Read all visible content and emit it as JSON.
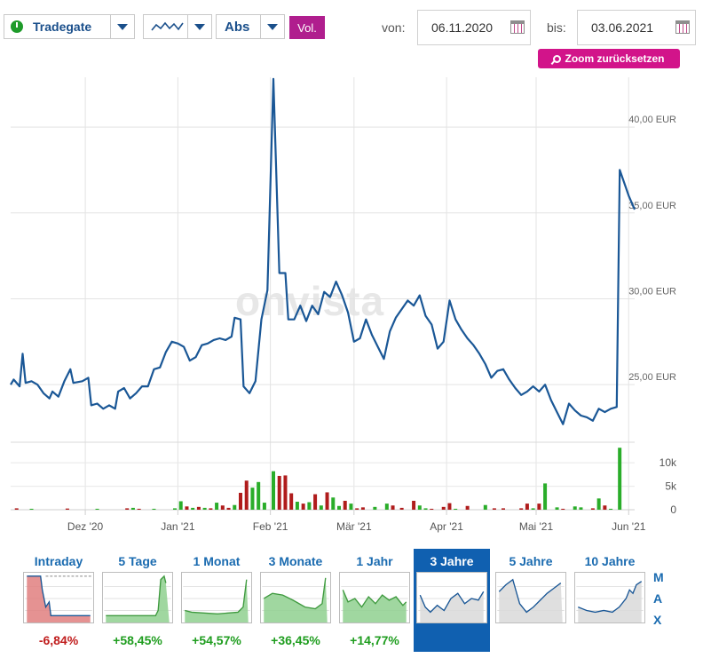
{
  "toolbar": {
    "exchange": "Tradegate",
    "scale": "Abs",
    "volume_button": "Vol.",
    "from_label": "von:",
    "from_date": "06.11.2020",
    "to_label": "bis:",
    "to_date": "03.06.2021",
    "zoom_reset": "Zoom zurücksetzen"
  },
  "watermark": "onvista",
  "colors": {
    "line": "#1a5796",
    "volume_up": "#2aad2a",
    "volume_down": "#b01c1c",
    "brand": "#d2148a",
    "active_tab": "#1060b0"
  },
  "chart_data": {
    "type": "line",
    "price_axis": {
      "ticks": [
        25,
        30,
        35,
        40
      ],
      "tick_labels": [
        "25,00 EUR",
        "30,00 EUR",
        "35,00 EUR",
        "40,00 EUR"
      ],
      "ylim": [
        21.7,
        42.9
      ]
    },
    "volume_axis": {
      "ticks": [
        0,
        5000,
        10000
      ],
      "tick_labels": [
        "0",
        "5k",
        "10k"
      ],
      "ylim": [
        0,
        14000
      ]
    },
    "x_axis": {
      "labels": [
        "Dez '20",
        "Jan '21",
        "Feb '21",
        "Mär '21",
        "Apr '21",
        "Mai '21",
        "Jun '21"
      ],
      "label_dates": [
        "2020-12-01",
        "2021-01-01",
        "2021-02-01",
        "2021-03-01",
        "2021-04-01",
        "2021-05-01",
        "2021-06-01"
      ],
      "range": [
        "2020-11-06",
        "2021-06-03"
      ]
    },
    "grid": true,
    "price_series": [
      [
        "2020-11-06",
        25.0
      ],
      [
        "2020-11-07",
        25.3
      ],
      [
        "2020-11-09",
        24.9
      ],
      [
        "2020-11-10",
        26.8
      ],
      [
        "2020-11-11",
        25.1
      ],
      [
        "2020-11-13",
        25.2
      ],
      [
        "2020-11-15",
        25.0
      ],
      [
        "2020-11-17",
        24.5
      ],
      [
        "2020-11-19",
        24.2
      ],
      [
        "2020-11-20",
        24.6
      ],
      [
        "2020-11-22",
        24.3
      ],
      [
        "2020-11-24",
        25.2
      ],
      [
        "2020-11-26",
        25.9
      ],
      [
        "2020-11-27",
        25.1
      ],
      [
        "2020-11-30",
        25.2
      ],
      [
        "2020-12-02",
        25.4
      ],
      [
        "2020-12-03",
        23.8
      ],
      [
        "2020-12-05",
        23.9
      ],
      [
        "2020-12-07",
        23.6
      ],
      [
        "2020-12-09",
        23.8
      ],
      [
        "2020-12-11",
        23.6
      ],
      [
        "2020-12-12",
        24.6
      ],
      [
        "2020-12-14",
        24.8
      ],
      [
        "2020-12-16",
        24.2
      ],
      [
        "2020-12-18",
        24.5
      ],
      [
        "2020-12-20",
        24.9
      ],
      [
        "2020-12-22",
        24.9
      ],
      [
        "2020-12-24",
        25.9
      ],
      [
        "2020-12-26",
        26.0
      ],
      [
        "2020-12-28",
        26.9
      ],
      [
        "2020-12-30",
        27.5
      ],
      [
        "2021-01-01",
        27.4
      ],
      [
        "2021-01-03",
        27.2
      ],
      [
        "2021-01-05",
        26.4
      ],
      [
        "2021-01-07",
        26.6
      ],
      [
        "2021-01-09",
        27.3
      ],
      [
        "2021-01-11",
        27.4
      ],
      [
        "2021-01-13",
        27.6
      ],
      [
        "2021-01-15",
        27.7
      ],
      [
        "2021-01-17",
        27.6
      ],
      [
        "2021-01-19",
        27.8
      ],
      [
        "2021-01-20",
        28.9
      ],
      [
        "2021-01-22",
        28.8
      ],
      [
        "2021-01-23",
        24.9
      ],
      [
        "2021-01-25",
        24.5
      ],
      [
        "2021-01-27",
        25.2
      ],
      [
        "2021-01-29",
        28.8
      ],
      [
        "2021-01-31",
        30.5
      ],
      [
        "2021-02-02",
        42.8
      ],
      [
        "2021-02-04",
        31.5
      ],
      [
        "2021-02-06",
        31.5
      ],
      [
        "2021-02-07",
        28.8
      ],
      [
        "2021-02-09",
        28.8
      ],
      [
        "2021-02-11",
        29.6
      ],
      [
        "2021-02-13",
        28.7
      ],
      [
        "2021-02-15",
        29.6
      ],
      [
        "2021-02-17",
        29.1
      ],
      [
        "2021-02-19",
        30.4
      ],
      [
        "2021-02-21",
        30.1
      ],
      [
        "2021-02-23",
        31.0
      ],
      [
        "2021-02-25",
        30.2
      ],
      [
        "2021-02-27",
        29.2
      ],
      [
        "2021-03-01",
        27.5
      ],
      [
        "2021-03-03",
        27.7
      ],
      [
        "2021-03-05",
        28.8
      ],
      [
        "2021-03-07",
        27.9
      ],
      [
        "2021-03-09",
        27.2
      ],
      [
        "2021-03-11",
        26.5
      ],
      [
        "2021-03-13",
        28.1
      ],
      [
        "2021-03-15",
        28.9
      ],
      [
        "2021-03-17",
        29.4
      ],
      [
        "2021-03-19",
        29.9
      ],
      [
        "2021-03-21",
        29.6
      ],
      [
        "2021-03-23",
        30.2
      ],
      [
        "2021-03-25",
        29.0
      ],
      [
        "2021-03-27",
        28.5
      ],
      [
        "2021-03-29",
        27.1
      ],
      [
        "2021-03-31",
        27.5
      ],
      [
        "2021-04-02",
        29.9
      ],
      [
        "2021-04-04",
        28.8
      ],
      [
        "2021-04-06",
        28.2
      ],
      [
        "2021-04-08",
        27.7
      ],
      [
        "2021-04-10",
        27.3
      ],
      [
        "2021-04-12",
        26.8
      ],
      [
        "2021-04-14",
        26.2
      ],
      [
        "2021-04-16",
        25.4
      ],
      [
        "2021-04-18",
        25.8
      ],
      [
        "2021-04-20",
        25.9
      ],
      [
        "2021-04-22",
        25.3
      ],
      [
        "2021-04-24",
        24.8
      ],
      [
        "2021-04-26",
        24.4
      ],
      [
        "2021-04-28",
        24.6
      ],
      [
        "2021-04-30",
        24.9
      ],
      [
        "2021-05-02",
        24.6
      ],
      [
        "2021-05-04",
        25.0
      ],
      [
        "2021-05-06",
        24.1
      ],
      [
        "2021-05-08",
        23.4
      ],
      [
        "2021-05-10",
        22.7
      ],
      [
        "2021-05-12",
        23.9
      ],
      [
        "2021-05-14",
        23.5
      ],
      [
        "2021-05-16",
        23.2
      ],
      [
        "2021-05-18",
        23.1
      ],
      [
        "2021-05-20",
        22.9
      ],
      [
        "2021-05-22",
        23.6
      ],
      [
        "2021-05-24",
        23.4
      ],
      [
        "2021-05-26",
        23.6
      ],
      [
        "2021-05-28",
        23.7
      ],
      [
        "2021-05-29",
        37.5
      ],
      [
        "2021-06-01",
        36.0
      ],
      [
        "2021-06-03",
        35.2
      ]
    ],
    "volume_series": [
      [
        "2020-11-08",
        300,
        "down"
      ],
      [
        "2020-11-13",
        200,
        "up"
      ],
      [
        "2020-11-25",
        250,
        "down"
      ],
      [
        "2020-12-05",
        200,
        "up"
      ],
      [
        "2020-12-15",
        300,
        "down"
      ],
      [
        "2020-12-17",
        400,
        "up"
      ],
      [
        "2020-12-19",
        200,
        "down"
      ],
      [
        "2020-12-24",
        200,
        "up"
      ],
      [
        "2020-12-31",
        300,
        "up"
      ],
      [
        "2021-01-02",
        1800,
        "up"
      ],
      [
        "2021-01-04",
        700,
        "down"
      ],
      [
        "2021-01-06",
        400,
        "up"
      ],
      [
        "2021-01-08",
        600,
        "down"
      ],
      [
        "2021-01-10",
        400,
        "up"
      ],
      [
        "2021-01-12",
        300,
        "down"
      ],
      [
        "2021-01-14",
        1500,
        "up"
      ],
      [
        "2021-01-16",
        900,
        "down"
      ],
      [
        "2021-01-18",
        400,
        "down"
      ],
      [
        "2021-01-20",
        1000,
        "up"
      ],
      [
        "2021-01-22",
        3600,
        "down"
      ],
      [
        "2021-01-24",
        6200,
        "down"
      ],
      [
        "2021-01-26",
        4700,
        "up"
      ],
      [
        "2021-01-28",
        5900,
        "up"
      ],
      [
        "2021-01-30",
        1500,
        "up"
      ],
      [
        "2021-02-02",
        8200,
        "up"
      ],
      [
        "2021-02-04",
        7200,
        "down"
      ],
      [
        "2021-02-06",
        7300,
        "down"
      ],
      [
        "2021-02-08",
        3500,
        "down"
      ],
      [
        "2021-02-10",
        1700,
        "up"
      ],
      [
        "2021-02-12",
        1300,
        "down"
      ],
      [
        "2021-02-14",
        1600,
        "up"
      ],
      [
        "2021-02-16",
        3300,
        "down"
      ],
      [
        "2021-02-18",
        900,
        "up"
      ],
      [
        "2021-02-20",
        3700,
        "down"
      ],
      [
        "2021-02-22",
        2600,
        "up"
      ],
      [
        "2021-02-24",
        800,
        "up"
      ],
      [
        "2021-02-26",
        1900,
        "down"
      ],
      [
        "2021-02-28",
        1300,
        "up"
      ],
      [
        "2021-03-02",
        300,
        "down"
      ],
      [
        "2021-03-04",
        500,
        "down"
      ],
      [
        "2021-03-08",
        600,
        "up"
      ],
      [
        "2021-03-12",
        1300,
        "up"
      ],
      [
        "2021-03-14",
        900,
        "down"
      ],
      [
        "2021-03-17",
        400,
        "down"
      ],
      [
        "2021-03-21",
        1900,
        "down"
      ],
      [
        "2021-03-23",
        900,
        "up"
      ],
      [
        "2021-03-25",
        300,
        "up"
      ],
      [
        "2021-03-27",
        200,
        "down"
      ],
      [
        "2021-03-31",
        600,
        "down"
      ],
      [
        "2021-04-02",
        1400,
        "down"
      ],
      [
        "2021-04-04",
        200,
        "up"
      ],
      [
        "2021-04-08",
        800,
        "down"
      ],
      [
        "2021-04-14",
        1000,
        "up"
      ],
      [
        "2021-04-17",
        300,
        "down"
      ],
      [
        "2021-04-20",
        300,
        "down"
      ],
      [
        "2021-04-26",
        300,
        "down"
      ],
      [
        "2021-04-28",
        1300,
        "down"
      ],
      [
        "2021-04-30",
        300,
        "up"
      ],
      [
        "2021-05-02",
        1300,
        "down"
      ],
      [
        "2021-05-04",
        5600,
        "up"
      ],
      [
        "2021-05-08",
        500,
        "up"
      ],
      [
        "2021-05-10",
        200,
        "down"
      ],
      [
        "2021-05-14",
        700,
        "up"
      ],
      [
        "2021-05-16",
        500,
        "up"
      ],
      [
        "2021-05-20",
        300,
        "down"
      ],
      [
        "2021-05-22",
        2400,
        "up"
      ],
      [
        "2021-05-24",
        900,
        "down"
      ],
      [
        "2021-05-26",
        200,
        "up"
      ],
      [
        "2021-05-29",
        13200,
        "up"
      ]
    ]
  },
  "range_tabs": [
    {
      "label": "Intraday",
      "change": "-6,84%",
      "direction": "neg"
    },
    {
      "label": "5 Tage",
      "change": "+58,45%",
      "direction": "pos"
    },
    {
      "label": "1 Monat",
      "change": "+54,57%",
      "direction": "pos"
    },
    {
      "label": "3 Monate",
      "change": "+36,45%",
      "direction": "pos"
    },
    {
      "label": "1 Jahr",
      "change": "+14,77%",
      "direction": "pos"
    },
    {
      "label": "3 Jahre",
      "change": "",
      "direction": "active"
    },
    {
      "label": "5 Jahre",
      "change": "",
      "direction": "none"
    },
    {
      "label": "10 Jahre",
      "change": "",
      "direction": "none"
    }
  ],
  "max_tab": [
    "M",
    "A",
    "X"
  ]
}
